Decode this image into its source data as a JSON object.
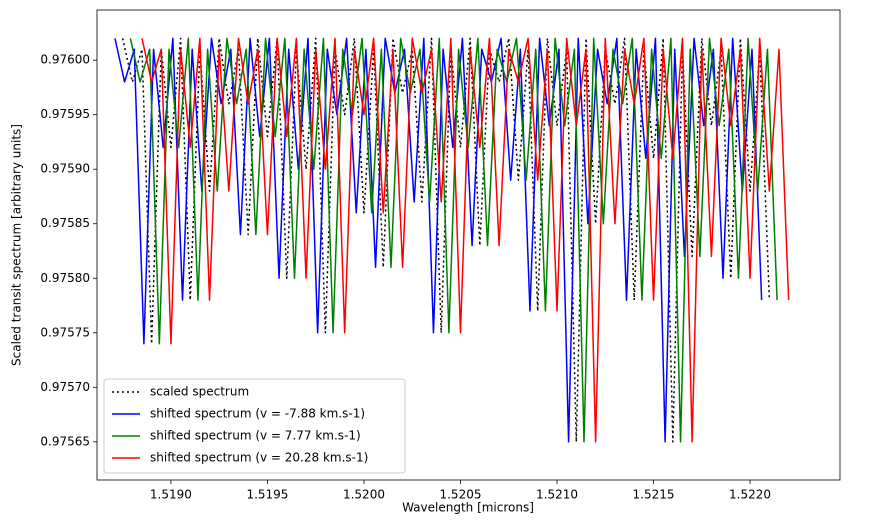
{
  "chart_data": {
    "type": "line",
    "xlabel": "Wavelength [microns]",
    "ylabel": "Scaled transit spectrum [arbitrary units]",
    "xlim": [
      1.518617,
      1.522466
    ],
    "ylim": [
      0.975615,
      0.976046
    ],
    "xticks": [
      {
        "value": 1.519,
        "label": "1.5190"
      },
      {
        "value": 1.5195,
        "label": "1.5195"
      },
      {
        "value": 1.52,
        "label": "1.5200"
      },
      {
        "value": 1.5205,
        "label": "1.5205"
      },
      {
        "value": 1.521,
        "label": "1.5210"
      },
      {
        "value": 1.5215,
        "label": "1.5215"
      },
      {
        "value": 1.522,
        "label": "1.5220"
      }
    ],
    "yticks": [
      {
        "value": 0.97565,
        "label": "0.97565"
      },
      {
        "value": 0.9757,
        "label": "0.97570"
      },
      {
        "value": 0.97575,
        "label": "0.97575"
      },
      {
        "value": 0.9758,
        "label": "0.97580"
      },
      {
        "value": 0.97585,
        "label": "0.97585"
      },
      {
        "value": 0.9759,
        "label": "0.97590"
      },
      {
        "value": 0.97595,
        "label": "0.97595"
      },
      {
        "value": 0.976,
        "label": "0.97600"
      }
    ],
    "legend": "lower left",
    "series": [
      {
        "name": "scaled spectrum",
        "color": "#000000",
        "linestyle": "dotted",
        "x": [
          1.51875,
          1.5188,
          1.51885,
          1.5189,
          1.51895,
          1.519,
          1.51905,
          1.5191,
          1.51915,
          1.5192,
          1.51925,
          1.5193,
          1.51935,
          1.5194,
          1.51945,
          1.5195,
          1.51955,
          1.5196,
          1.51965,
          1.5197,
          1.51975,
          1.5198,
          1.51985,
          1.5199,
          1.51995,
          1.52,
          1.52005,
          1.5201,
          1.52015,
          1.5202,
          1.52025,
          1.5203,
          1.52035,
          1.5204,
          1.52045,
          1.5205,
          1.52055,
          1.5206,
          1.52065,
          1.5207,
          1.52075,
          1.5208,
          1.52085,
          1.5209,
          1.52095,
          1.521,
          1.52105,
          1.5211,
          1.52115,
          1.5212,
          1.52125,
          1.5213,
          1.52135,
          1.5214,
          1.52145,
          1.5215,
          1.52155,
          1.5216,
          1.52165,
          1.5217,
          1.52175,
          1.5218,
          1.52185,
          1.5219,
          1.52195,
          1.522,
          1.52205,
          1.5221
        ],
        "values": [
          0.97602,
          0.97598,
          0.97601,
          0.97574,
          0.97601,
          0.97592,
          0.97602,
          0.97578,
          0.97601,
          0.97588,
          0.97602,
          0.97596,
          0.97601,
          0.97584,
          0.97602,
          0.97593,
          0.97602,
          0.9758,
          0.97601,
          0.9759,
          0.97602,
          0.97575,
          0.97601,
          0.97595,
          0.97602,
          0.97586,
          0.97601,
          0.97581,
          0.97602,
          0.97597,
          0.97601,
          0.97587,
          0.97602,
          0.97575,
          0.97601,
          0.97592,
          0.97602,
          0.97583,
          0.97601,
          0.97598,
          0.97602,
          0.97589,
          0.97601,
          0.97577,
          0.97602,
          0.97594,
          0.97601,
          0.97565,
          0.97602,
          0.97585,
          0.97601,
          0.97596,
          0.97602,
          0.97578,
          0.97601,
          0.97591,
          0.97602,
          0.97565,
          0.97601,
          0.97582,
          0.97602,
          0.97594,
          0.97601,
          0.9758,
          0.97602,
          0.97588,
          0.97601,
          0.97578
        ]
      },
      {
        "name": "shifted spectrum (v = -7.88 km.s-1)",
        "color": "#0000ff",
        "linestyle": "solid",
        "x": [
          1.51871,
          1.51876,
          1.51881,
          1.51886,
          1.51891,
          1.51896,
          1.51901,
          1.51906,
          1.51911,
          1.51916,
          1.51921,
          1.51926,
          1.51931,
          1.51936,
          1.51941,
          1.51946,
          1.51951,
          1.51956,
          1.51961,
          1.51966,
          1.51971,
          1.51976,
          1.51981,
          1.51986,
          1.51991,
          1.51996,
          1.52001,
          1.52006,
          1.52011,
          1.52016,
          1.52021,
          1.52026,
          1.52031,
          1.52036,
          1.52041,
          1.52046,
          1.52051,
          1.52056,
          1.52061,
          1.52066,
          1.52071,
          1.52076,
          1.52081,
          1.52086,
          1.52091,
          1.52096,
          1.52101,
          1.52106,
          1.52111,
          1.52116,
          1.52121,
          1.52126,
          1.52131,
          1.52136,
          1.52141,
          1.52146,
          1.52151,
          1.52156,
          1.52161,
          1.52166,
          1.52171,
          1.52176,
          1.52181,
          1.52186,
          1.52191,
          1.52196,
          1.52201,
          1.52206
        ],
        "values": [
          0.97602,
          0.97598,
          0.97601,
          0.97574,
          0.97601,
          0.97592,
          0.97602,
          0.97578,
          0.97601,
          0.97588,
          0.97602,
          0.97596,
          0.97601,
          0.97584,
          0.97602,
          0.97593,
          0.97602,
          0.9758,
          0.97601,
          0.9759,
          0.97602,
          0.97575,
          0.97601,
          0.97595,
          0.97602,
          0.97586,
          0.97601,
          0.97581,
          0.97602,
          0.97597,
          0.97601,
          0.97587,
          0.97602,
          0.97575,
          0.97601,
          0.97592,
          0.97602,
          0.97583,
          0.97601,
          0.97598,
          0.97602,
          0.97589,
          0.97601,
          0.97577,
          0.97602,
          0.97594,
          0.97601,
          0.97565,
          0.97602,
          0.97585,
          0.97601,
          0.97596,
          0.97602,
          0.97578,
          0.97601,
          0.97591,
          0.97602,
          0.97565,
          0.97601,
          0.97582,
          0.97602,
          0.97594,
          0.97601,
          0.9758,
          0.97602,
          0.97588,
          0.97601,
          0.97578
        ]
      },
      {
        "name": "shifted spectrum (v = 7.77 km.s-1)",
        "color": "#008000",
        "linestyle": "solid",
        "x": [
          1.51879,
          1.51884,
          1.51889,
          1.51894,
          1.51899,
          1.51904,
          1.51909,
          1.51914,
          1.51919,
          1.51924,
          1.51929,
          1.51934,
          1.51939,
          1.51944,
          1.51949,
          1.51954,
          1.51959,
          1.51964,
          1.51969,
          1.51974,
          1.51979,
          1.51984,
          1.51989,
          1.51994,
          1.51999,
          1.52004,
          1.52009,
          1.52014,
          1.52019,
          1.52024,
          1.52029,
          1.52034,
          1.52039,
          1.52044,
          1.52049,
          1.52054,
          1.52059,
          1.52064,
          1.52069,
          1.52074,
          1.52079,
          1.52084,
          1.52089,
          1.52094,
          1.52099,
          1.52104,
          1.52109,
          1.52114,
          1.52119,
          1.52124,
          1.52129,
          1.52134,
          1.52139,
          1.52144,
          1.52149,
          1.52154,
          1.52159,
          1.52164,
          1.52169,
          1.52174,
          1.52179,
          1.52184,
          1.52189,
          1.52194,
          1.52199,
          1.52204,
          1.52209,
          1.52214
        ],
        "values": [
          0.97602,
          0.97598,
          0.97601,
          0.97574,
          0.97601,
          0.97592,
          0.97602,
          0.97578,
          0.97601,
          0.97588,
          0.97602,
          0.97596,
          0.97601,
          0.97584,
          0.97602,
          0.97593,
          0.97602,
          0.9758,
          0.97601,
          0.9759,
          0.97602,
          0.97575,
          0.97601,
          0.97595,
          0.97602,
          0.97586,
          0.97601,
          0.97581,
          0.97602,
          0.97597,
          0.97601,
          0.97587,
          0.97602,
          0.97575,
          0.97601,
          0.97592,
          0.97602,
          0.97583,
          0.97601,
          0.97598,
          0.97602,
          0.97589,
          0.97601,
          0.97577,
          0.97602,
          0.97594,
          0.97601,
          0.97565,
          0.97602,
          0.97585,
          0.97601,
          0.97596,
          0.97602,
          0.97578,
          0.97601,
          0.97591,
          0.97602,
          0.97565,
          0.97601,
          0.97582,
          0.97602,
          0.97594,
          0.97601,
          0.9758,
          0.97602,
          0.97588,
          0.97601,
          0.97578
        ]
      },
      {
        "name": "shifted spectrum (v = 20.28 km.s-1)",
        "color": "#ff0000",
        "linestyle": "solid",
        "x": [
          1.51885,
          1.5189,
          1.51895,
          1.519,
          1.51905,
          1.5191,
          1.51915,
          1.5192,
          1.51925,
          1.5193,
          1.51935,
          1.5194,
          1.51945,
          1.5195,
          1.51955,
          1.5196,
          1.51965,
          1.5197,
          1.51975,
          1.5198,
          1.51985,
          1.5199,
          1.51995,
          1.52,
          1.52005,
          1.5201,
          1.52015,
          1.5202,
          1.52025,
          1.5203,
          1.52035,
          1.5204,
          1.52045,
          1.5205,
          1.52055,
          1.5206,
          1.52065,
          1.5207,
          1.52075,
          1.5208,
          1.52085,
          1.5209,
          1.52095,
          1.521,
          1.52105,
          1.5211,
          1.52115,
          1.5212,
          1.52125,
          1.5213,
          1.52135,
          1.5214,
          1.52145,
          1.5215,
          1.52155,
          1.5216,
          1.52165,
          1.5217,
          1.52175,
          1.5218,
          1.52185,
          1.5219,
          1.52195,
          1.522,
          1.52205,
          1.5221,
          1.52215,
          1.5222
        ],
        "values": [
          0.97602,
          0.97598,
          0.97601,
          0.97574,
          0.97601,
          0.97592,
          0.97602,
          0.97578,
          0.97601,
          0.97588,
          0.97602,
          0.97596,
          0.97601,
          0.97584,
          0.97602,
          0.97593,
          0.97602,
          0.9758,
          0.97601,
          0.9759,
          0.97602,
          0.97575,
          0.97601,
          0.97595,
          0.97602,
          0.97586,
          0.97601,
          0.97581,
          0.97602,
          0.97597,
          0.97601,
          0.97587,
          0.97602,
          0.97575,
          0.97601,
          0.97592,
          0.97602,
          0.97583,
          0.97601,
          0.97598,
          0.97602,
          0.97589,
          0.97601,
          0.97577,
          0.97602,
          0.97594,
          0.97601,
          0.97565,
          0.97602,
          0.97585,
          0.97601,
          0.97596,
          0.97602,
          0.97578,
          0.97601,
          0.97591,
          0.97602,
          0.97565,
          0.97601,
          0.97582,
          0.97602,
          0.97594,
          0.97601,
          0.9758,
          0.97602,
          0.97588,
          0.97601,
          0.97578
        ]
      }
    ]
  }
}
